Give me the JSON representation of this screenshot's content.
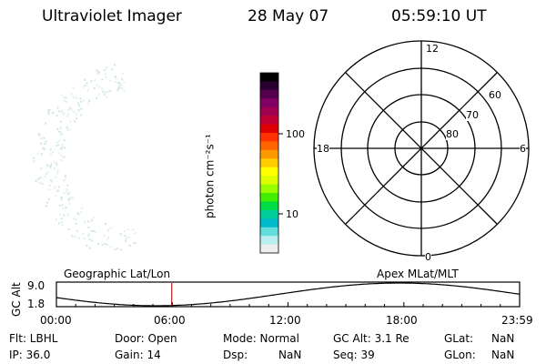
{
  "header": {
    "instrument": "Ultraviolet Imager",
    "date": "28 May 07",
    "time": "05:59:10 UT"
  },
  "colorbar": {
    "unit_label": "photon cm⁻²s⁻¹",
    "ticks": [
      "100",
      "10"
    ],
    "colors": [
      "#000000",
      "#2a0033",
      "#55004d",
      "#800066",
      "#a0004d",
      "#c00033",
      "#e00000",
      "#ff3300",
      "#ff6600",
      "#ff9900",
      "#ffcc00",
      "#ffff00",
      "#ddff00",
      "#99ff00",
      "#44ee00",
      "#00dd44",
      "#00cc99",
      "#00bbcc",
      "#66dddd",
      "#bbeeee",
      "#eeeeee"
    ]
  },
  "polar_plot": {
    "mlt_labels": {
      "top": "12",
      "left": "18",
      "right": "6",
      "bottom": "0"
    },
    "lat_labels": [
      "60",
      "70",
      "80"
    ]
  },
  "timeline": {
    "left_label": "Geographic Lat/Lon",
    "right_label": "Apex MLat/MLT",
    "axis_label": "GC Alt",
    "y_max": "9.0",
    "y_min": "1.8",
    "x_ticks": [
      "00:00",
      "06:00",
      "12:00",
      "18:00",
      "23:59"
    ],
    "current_time_fraction": 0.249
  },
  "info": {
    "filter": "Flt: LBHL",
    "ip": "IP: 36.0",
    "door": "Door: Open",
    "gain": "Gain: 14",
    "mode": "Mode: Normal",
    "dsp_label": "Dsp:",
    "dsp_value": "NaN",
    "gc_alt": "GC Alt: 3.1 Re",
    "seq": "Seq: 39",
    "glat_label": "GLat:",
    "glat_value": "NaN",
    "glon_label": "GLon:",
    "glon_value": "NaN"
  }
}
